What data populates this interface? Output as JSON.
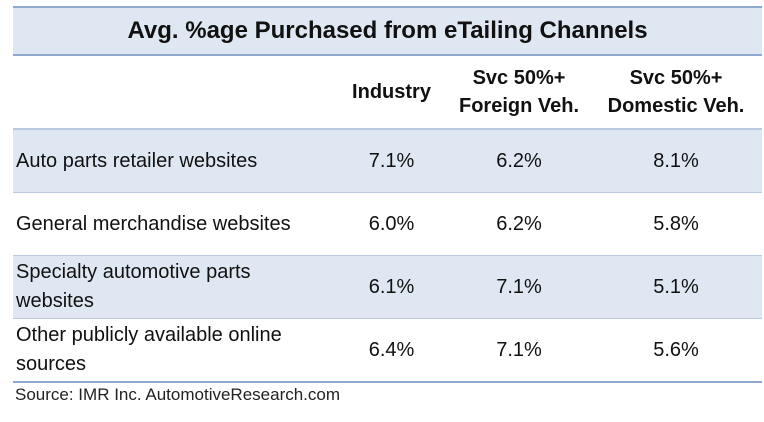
{
  "title": "Avg. %age Purchased from eTailing Channels",
  "columns": {
    "industry": "Industry",
    "foreign": [
      "Svc 50%+",
      "Foreign Veh."
    ],
    "domestic": [
      "Svc 50%+",
      "Domestic Veh."
    ]
  },
  "rows": [
    {
      "label": [
        "Auto parts retailer websites"
      ],
      "industry": "7.1%",
      "foreign": "6.2%",
      "domestic": "8.1%"
    },
    {
      "label": [
        "General merchandise websites"
      ],
      "industry": "6.0%",
      "foreign": "6.2%",
      "domestic": "5.8%"
    },
    {
      "label": [
        "Specialty automotive parts",
        "websites"
      ],
      "industry": "6.1%",
      "foreign": "7.1%",
      "domestic": "5.1%"
    },
    {
      "label": [
        "Other publicly available online",
        "sources"
      ],
      "industry": "6.4%",
      "foreign": "7.1%",
      "domestic": "5.6%"
    }
  ],
  "source": "Source:  IMR Inc.  AutomotiveResearch.com",
  "colors": {
    "band": "#dfe8f2",
    "rule": "#8eaad0"
  }
}
